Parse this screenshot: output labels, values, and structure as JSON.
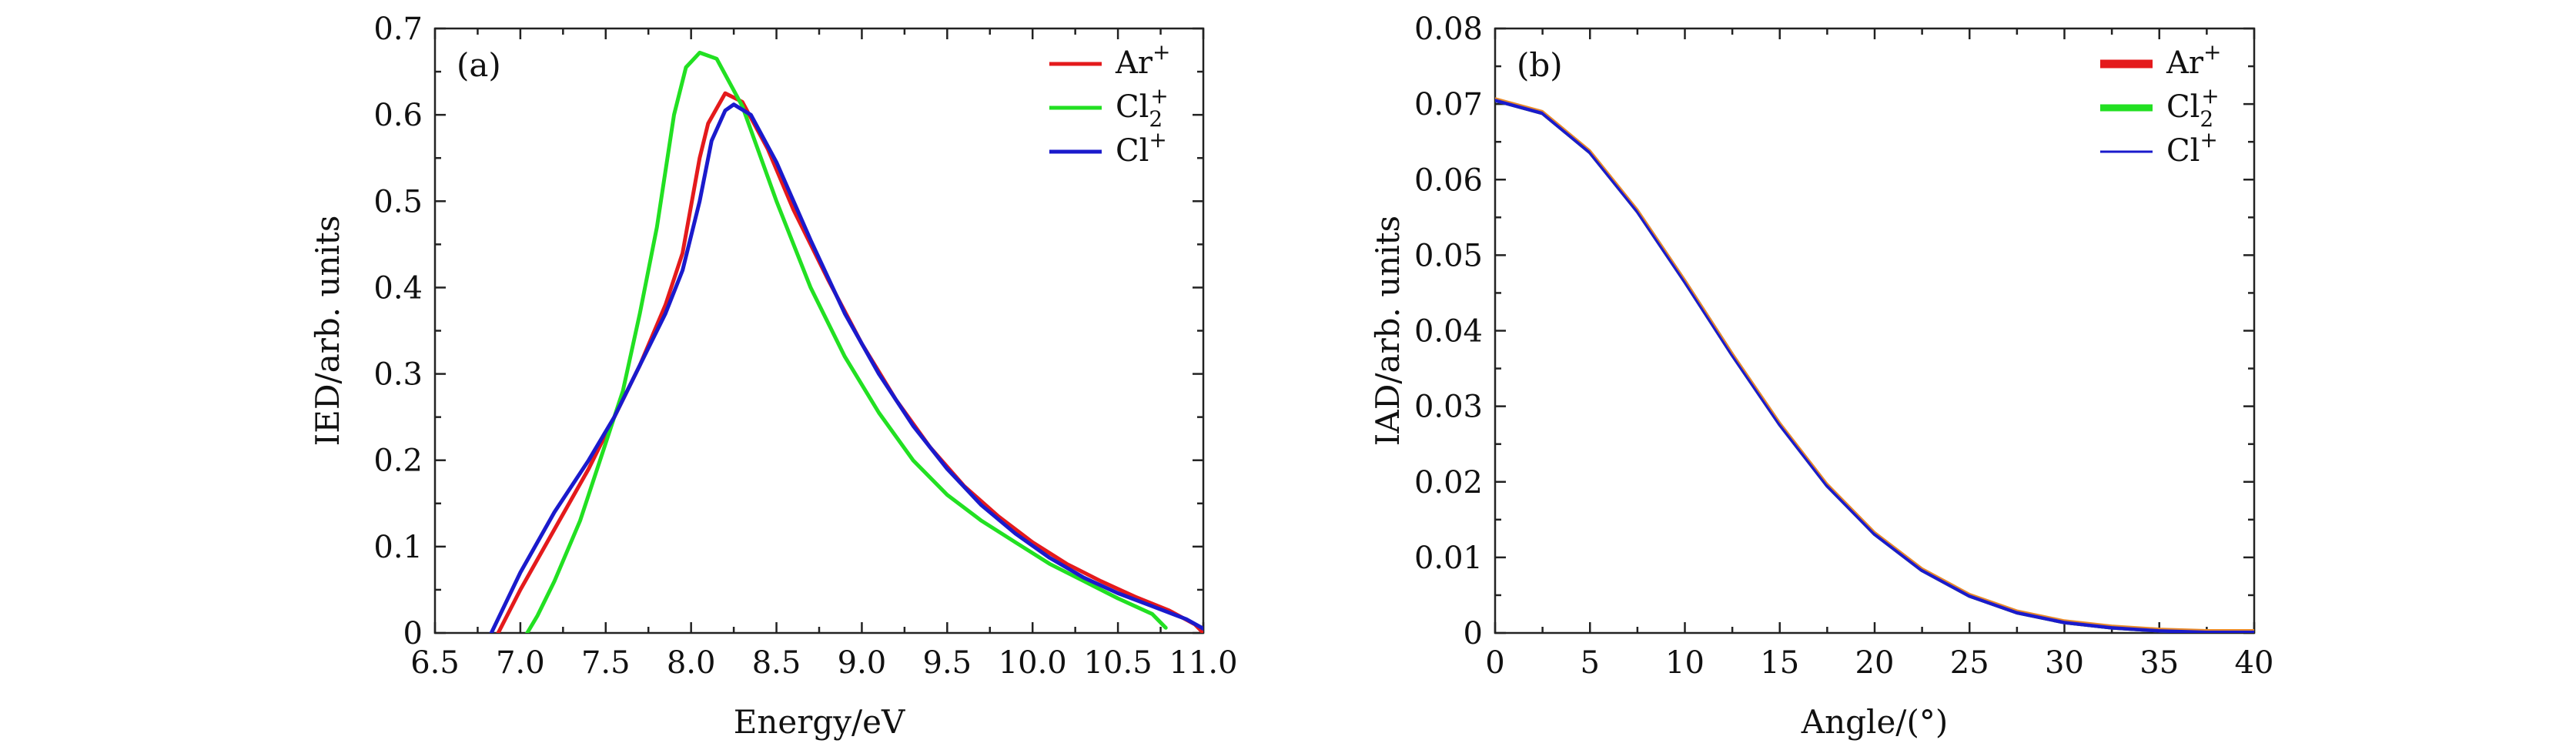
{
  "chart_data": [
    {
      "type": "line",
      "panel_label": "(a)",
      "xlabel": "Energy/eV",
      "ylabel": "IED/arb. units",
      "xlim": [
        6.5,
        11.0
      ],
      "ylim": [
        0,
        0.7
      ],
      "x_ticks": [
        "6.5",
        "7.0",
        "7.5",
        "8.0",
        "8.5",
        "9.0",
        "9.5",
        "10.0",
        "10.5",
        "11.0"
      ],
      "y_ticks": [
        "0",
        "0.1",
        "0.2",
        "0.3",
        "0.4",
        "0.5",
        "0.6",
        "0.7"
      ],
      "legend_position": "top-right",
      "series": [
        {
          "name": "Ar+",
          "color": "#e41a1c",
          "points": [
            [
              6.87,
              0.0
            ],
            [
              7.0,
              0.05
            ],
            [
              7.2,
              0.12
            ],
            [
              7.4,
              0.19
            ],
            [
              7.55,
              0.25
            ],
            [
              7.7,
              0.31
            ],
            [
              7.85,
              0.38
            ],
            [
              7.95,
              0.44
            ],
            [
              8.05,
              0.55
            ],
            [
              8.1,
              0.59
            ],
            [
              8.2,
              0.625
            ],
            [
              8.3,
              0.615
            ],
            [
              8.45,
              0.56
            ],
            [
              8.6,
              0.49
            ],
            [
              8.8,
              0.41
            ],
            [
              9.0,
              0.335
            ],
            [
              9.2,
              0.27
            ],
            [
              9.4,
              0.215
            ],
            [
              9.6,
              0.17
            ],
            [
              9.8,
              0.135
            ],
            [
              10.0,
              0.105
            ],
            [
              10.2,
              0.08
            ],
            [
              10.4,
              0.06
            ],
            [
              10.6,
              0.042
            ],
            [
              10.8,
              0.026
            ],
            [
              10.95,
              0.01
            ],
            [
              11.0,
              0.0
            ]
          ]
        },
        {
          "name": "Cl2+",
          "color": "#22e022",
          "points": [
            [
              7.04,
              0.0
            ],
            [
              7.1,
              0.02
            ],
            [
              7.2,
              0.06
            ],
            [
              7.35,
              0.13
            ],
            [
              7.5,
              0.22
            ],
            [
              7.6,
              0.28
            ],
            [
              7.7,
              0.37
            ],
            [
              7.8,
              0.47
            ],
            [
              7.9,
              0.6
            ],
            [
              7.97,
              0.655
            ],
            [
              8.05,
              0.672
            ],
            [
              8.15,
              0.665
            ],
            [
              8.3,
              0.61
            ],
            [
              8.5,
              0.5
            ],
            [
              8.7,
              0.4
            ],
            [
              8.9,
              0.32
            ],
            [
              9.1,
              0.255
            ],
            [
              9.3,
              0.2
            ],
            [
              9.5,
              0.16
            ],
            [
              9.7,
              0.13
            ],
            [
              9.9,
              0.105
            ],
            [
              10.1,
              0.08
            ],
            [
              10.3,
              0.06
            ],
            [
              10.5,
              0.04
            ],
            [
              10.7,
              0.022
            ],
            [
              10.78,
              0.006
            ]
          ]
        },
        {
          "name": "Cl+",
          "color": "#1a1acc",
          "points": [
            [
              6.83,
              0.0
            ],
            [
              7.0,
              0.07
            ],
            [
              7.2,
              0.14
            ],
            [
              7.4,
              0.2
            ],
            [
              7.55,
              0.25
            ],
            [
              7.7,
              0.31
            ],
            [
              7.85,
              0.37
            ],
            [
              7.95,
              0.42
            ],
            [
              8.05,
              0.5
            ],
            [
              8.12,
              0.57
            ],
            [
              8.2,
              0.605
            ],
            [
              8.25,
              0.612
            ],
            [
              8.35,
              0.6
            ],
            [
              8.5,
              0.545
            ],
            [
              8.7,
              0.455
            ],
            [
              8.9,
              0.37
            ],
            [
              9.1,
              0.3
            ],
            [
              9.3,
              0.24
            ],
            [
              9.5,
              0.19
            ],
            [
              9.7,
              0.148
            ],
            [
              9.9,
              0.115
            ],
            [
              10.1,
              0.087
            ],
            [
              10.3,
              0.064
            ],
            [
              10.5,
              0.046
            ],
            [
              10.7,
              0.031
            ],
            [
              10.9,
              0.016
            ],
            [
              11.0,
              0.005
            ]
          ]
        }
      ]
    },
    {
      "type": "line",
      "panel_label": "(b)",
      "xlabel": "Angle/(°)",
      "ylabel": "IAD/arb. units",
      "xlim": [
        0,
        40
      ],
      "ylim": [
        0,
        0.08
      ],
      "x_ticks": [
        "0",
        "5",
        "10",
        "15",
        "20",
        "25",
        "30",
        "35",
        "40"
      ],
      "y_ticks": [
        "0",
        "0.01",
        "0.02",
        "0.03",
        "0.04",
        "0.05",
        "0.06",
        "0.07",
        "0.08"
      ],
      "legend_position": "top-right",
      "series": [
        {
          "name": "Ar+",
          "color": "#e41a1c",
          "points": [
            [
              0,
              0.0705
            ],
            [
              2.5,
              0.0688
            ],
            [
              5,
              0.0636
            ],
            [
              7.5,
              0.0558
            ],
            [
              10,
              0.0465
            ],
            [
              12.5,
              0.0368
            ],
            [
              15,
              0.0276
            ],
            [
              17.5,
              0.0195
            ],
            [
              20,
              0.0131
            ],
            [
              22.5,
              0.0083
            ],
            [
              25,
              0.0049
            ],
            [
              27.5,
              0.0027
            ],
            [
              30,
              0.0014
            ],
            [
              32.5,
              0.0007
            ],
            [
              35,
              0.0003
            ],
            [
              37.5,
              0.0001
            ],
            [
              40,
              0.0001
            ]
          ]
        },
        {
          "name": "Cl2+",
          "color": "#22e022",
          "points": [
            [
              0,
              0.0705
            ],
            [
              2.5,
              0.0688
            ],
            [
              5,
              0.0636
            ],
            [
              7.5,
              0.0558
            ],
            [
              10,
              0.0465
            ],
            [
              12.5,
              0.0368
            ],
            [
              15,
              0.0276
            ],
            [
              17.5,
              0.0195
            ],
            [
              20,
              0.0131
            ],
            [
              22.5,
              0.0083
            ],
            [
              25,
              0.0049
            ],
            [
              27.5,
              0.0027
            ],
            [
              30,
              0.0014
            ],
            [
              32.5,
              0.0007
            ],
            [
              35,
              0.0003
            ],
            [
              37.5,
              0.0001
            ],
            [
              40,
              0.0001
            ]
          ]
        },
        {
          "name": "Cl+",
          "color": "#1a1acc",
          "points": [
            [
              0,
              0.0705
            ],
            [
              2.5,
              0.0688
            ],
            [
              5,
              0.0636
            ],
            [
              7.5,
              0.0558
            ],
            [
              10,
              0.0465
            ],
            [
              12.5,
              0.0368
            ],
            [
              15,
              0.0276
            ],
            [
              17.5,
              0.0195
            ],
            [
              20,
              0.0131
            ],
            [
              22.5,
              0.0083
            ],
            [
              25,
              0.0049
            ],
            [
              27.5,
              0.0027
            ],
            [
              30,
              0.0014
            ],
            [
              32.5,
              0.0007
            ],
            [
              35,
              0.0003
            ],
            [
              37.5,
              0.0001
            ],
            [
              40,
              0.0001
            ]
          ]
        }
      ]
    }
  ]
}
